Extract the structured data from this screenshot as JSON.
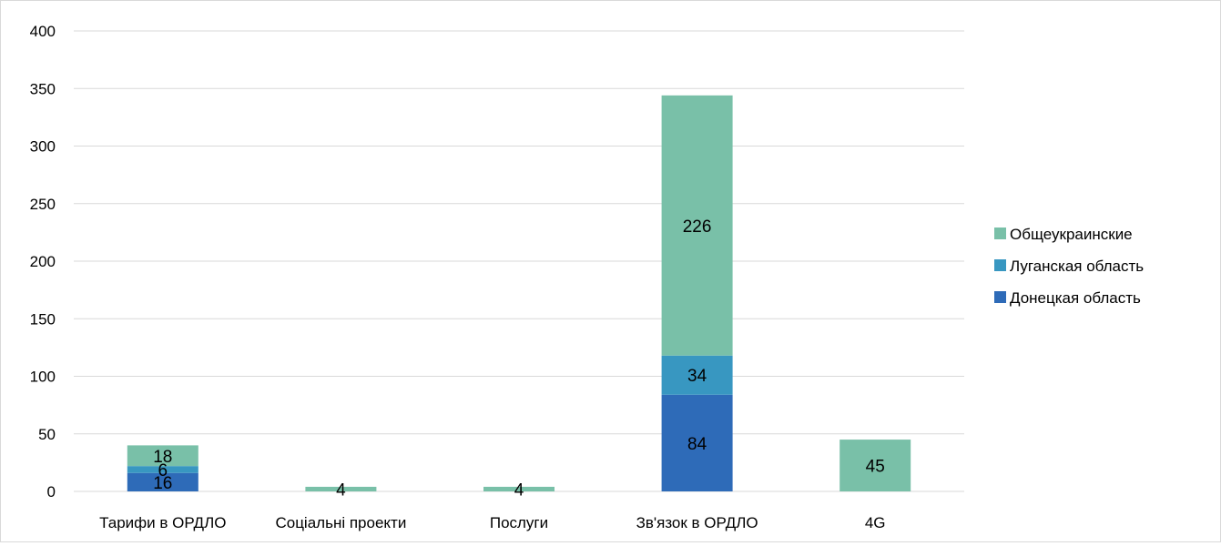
{
  "chart_data": {
    "type": "bar",
    "stacked": true,
    "title": "",
    "xlabel": "",
    "ylabel": "",
    "categories": [
      "Тарифи в  ОРДЛО",
      "Соціальні проекти",
      "Послуги",
      "Зв'язок в ОРДЛО",
      "4G"
    ],
    "series": [
      {
        "name": "Донецкая область",
        "color": "#2e6bb8",
        "values": [
          16,
          0,
          0,
          84,
          0
        ]
      },
      {
        "name": "Луганская область",
        "color": "#3897c1",
        "values": [
          6,
          0,
          0,
          34,
          0
        ]
      },
      {
        "name": "Общеукраинские",
        "color": "#79c0a8",
        "values": [
          18,
          4,
          4,
          226,
          45
        ]
      }
    ],
    "data_labels": [
      [
        {
          "value": "16"
        },
        null,
        null,
        {
          "value": "84"
        },
        null
      ],
      [
        {
          "value": "6"
        },
        null,
        null,
        {
          "value": "34"
        },
        null
      ],
      [
        {
          "value": "18"
        },
        {
          "value": "4"
        },
        {
          "value": "4"
        },
        {
          "value": "226"
        },
        {
          "value": "45"
        }
      ]
    ],
    "ylim": [
      0,
      400
    ],
    "yticks": [
      0,
      50,
      100,
      150,
      200,
      250,
      300,
      350,
      400
    ],
    "grid": true,
    "legend": {
      "position": "right",
      "order": [
        "Общеукраинские",
        "Луганская область",
        "Донецкая область"
      ]
    }
  }
}
